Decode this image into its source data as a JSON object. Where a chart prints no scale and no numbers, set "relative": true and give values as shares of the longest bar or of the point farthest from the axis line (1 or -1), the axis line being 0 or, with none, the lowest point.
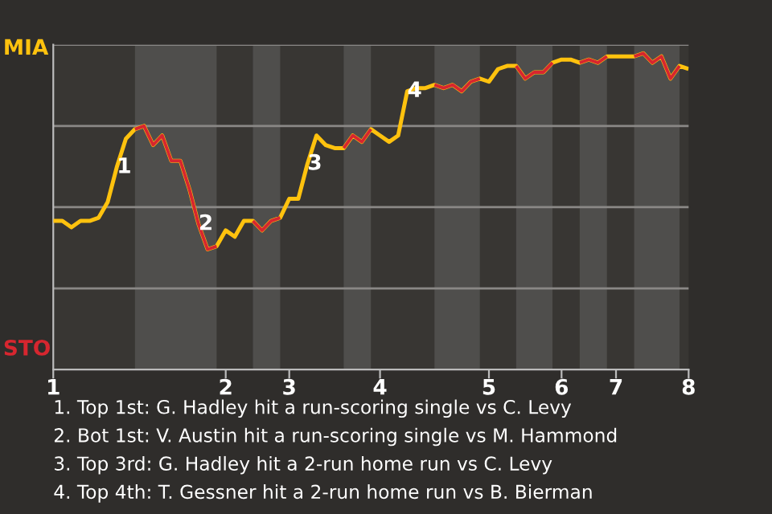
{
  "chart_data": {
    "type": "line",
    "relative": true,
    "categories": [
      "1",
      null,
      null,
      null,
      null,
      null,
      null,
      null,
      null,
      null,
      null,
      null,
      null,
      null,
      null,
      null,
      null,
      null,
      null,
      "2",
      null,
      null,
      null,
      null,
      null,
      null,
      "3",
      null,
      null,
      null,
      null,
      null,
      null,
      null,
      null,
      null,
      "4",
      null,
      null,
      null,
      null,
      null,
      null,
      null,
      null,
      null,
      null,
      null,
      "5",
      null,
      null,
      null,
      null,
      null,
      null,
      null,
      "6",
      null,
      null,
      null,
      null,
      null,
      "7",
      null,
      null,
      null,
      null,
      null,
      null,
      null,
      "8"
    ],
    "grid": "y",
    "series": [
      {
        "color": "#ffc20e",
        "values": [
          0.47,
          0.47,
          0.45,
          0.47,
          0.47,
          0.48,
          0.53,
          0.64,
          0.73,
          0.76,
          0.77,
          0.71,
          0.74,
          0.66,
          0.66,
          0.57,
          0.46,
          0.38,
          0.39,
          0.44,
          0.42,
          0.47,
          0.47,
          0.44,
          0.47,
          0.48,
          0.54,
          0.54,
          0.65,
          0.74,
          0.71,
          0.7,
          0.7,
          0.74,
          0.72,
          0.76,
          0.74,
          0.72,
          0.74,
          0.88,
          0.89,
          0.89,
          0.9,
          0.89,
          0.9,
          0.88,
          0.91,
          0.92,
          0.91,
          0.95,
          0.96,
          0.96,
          0.92,
          0.94,
          0.94,
          0.97,
          0.98,
          0.98,
          0.97,
          0.98,
          0.97,
          0.99,
          0.99,
          0.99,
          0.99,
          1,
          0.97,
          0.99,
          0.92,
          0.96,
          0.95
        ]
      },
      {
        "color": "#d7262f",
        "values": [
          null,
          null,
          null,
          null,
          null,
          null,
          null,
          null,
          null,
          0.76,
          0.77,
          0.71,
          0.74,
          0.66,
          0.66,
          0.57,
          0.46,
          0.38,
          0.39,
          null,
          null,
          null,
          0.47,
          0.44,
          0.47,
          0.48,
          null,
          null,
          null,
          null,
          null,
          null,
          0.7,
          0.74,
          0.72,
          0.76,
          null,
          null,
          null,
          null,
          null,
          null,
          0.9,
          0.89,
          0.9,
          0.88,
          0.91,
          0.92,
          null,
          null,
          null,
          0.96,
          0.92,
          0.94,
          0.94,
          0.97,
          null,
          null,
          0.97,
          0.98,
          0.97,
          0.99,
          null,
          null,
          0.99,
          1,
          0.97,
          0.99,
          0.92,
          0.96,
          null
        ]
      }
    ],
    "annotations": [
      {
        "text": "1",
        "y": 0.64
      },
      {
        "text": "2",
        "y": 0.46
      },
      {
        "text": "3",
        "y": 0.65
      },
      {
        "text": "4",
        "y": 0.88
      },
      "MIA",
      "STO",
      "1. Top 1st: G. Hadley hit a run-scoring single vs C. Levy",
      "2. Bot 1st: V. Austin hit a run-scoring single vs M. Hammond",
      "3. Top 3rd: G. Hadley hit a 2-run home run vs C. Levy",
      "4. Top 4th: T. Gessner hit a 2-run home run vs B. Bierman"
    ]
  }
}
